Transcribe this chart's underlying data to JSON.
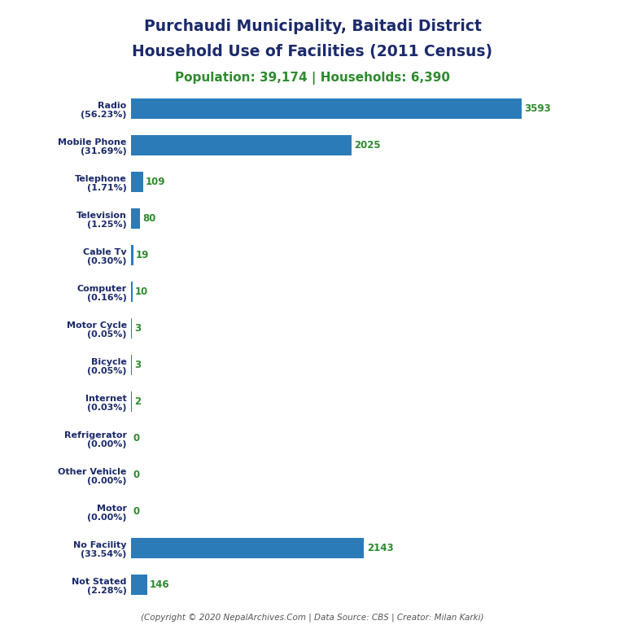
{
  "title_line1": "Purchaudi Municipality, Baitadi District",
  "title_line2": "Household Use of Facilities (2011 Census)",
  "subtitle": "Population: 39,174 | Households: 6,390",
  "footer": "(Copyright © 2020 NepalArchives.Com | Data Source: CBS | Creator: Milan Karki)",
  "categories": [
    "Radio\n(56.23%)",
    "Mobile Phone\n(31.69%)",
    "Telephone\n(1.71%)",
    "Television\n(1.25%)",
    "Cable Tv\n(0.30%)",
    "Computer\n(0.16%)",
    "Motor Cycle\n(0.05%)",
    "Bicycle\n(0.05%)",
    "Internet\n(0.03%)",
    "Refrigerator\n(0.00%)",
    "Other Vehicle\n(0.00%)",
    "Motor\n(0.00%)",
    "No Facility\n(33.54%)",
    "Not Stated\n(2.28%)"
  ],
  "values": [
    3593,
    2025,
    109,
    80,
    19,
    10,
    3,
    3,
    2,
    0,
    0,
    0,
    2143,
    146
  ],
  "bar_color": "#2B7BB9",
  "title_color": "#1B2A6B",
  "subtitle_color": "#2E8B2E",
  "value_color": "#2E8B2E",
  "footer_color": "#555555",
  "background_color": "#FFFFFF",
  "xlim": [
    0,
    4200
  ]
}
